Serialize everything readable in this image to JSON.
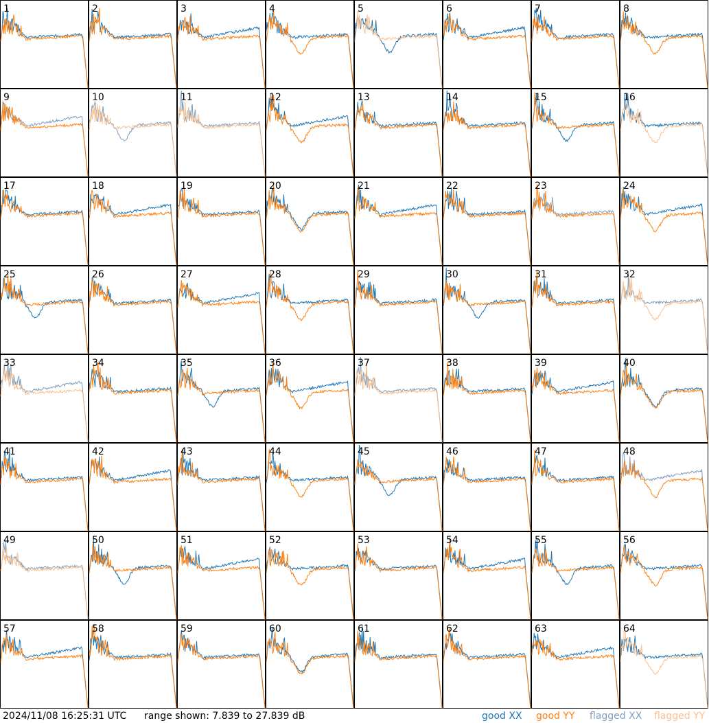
{
  "footer": {
    "timestamp": "2024/11/08 16:25:31 UTC",
    "range": "range shown: 7.839 to 27.839 dB"
  },
  "legend": {
    "good_xx": "good XX",
    "good_yy": "good YY",
    "flagged_xx": "flagged XX",
    "flagged_yy": "flagged YY"
  },
  "colors": {
    "good_xx": "#1f77b4",
    "good_yy": "#ff7f0e",
    "flagged_xx": "#7f9fbf",
    "flagged_yy": "#fbc08e",
    "border": "#000000"
  },
  "chart_data": {
    "type": "line",
    "ylim": [
      7.839,
      27.839
    ],
    "yunit": "dB",
    "panels": [
      {
        "id": "1",
        "xx": "good",
        "yy": "good"
      },
      {
        "id": "2",
        "xx": "good",
        "yy": "good"
      },
      {
        "id": "3",
        "xx": "good",
        "yy": "good"
      },
      {
        "id": "4",
        "xx": "good",
        "yy": "good"
      },
      {
        "id": "5",
        "xx": "good",
        "yy": "flagged"
      },
      {
        "id": "6",
        "xx": "good",
        "yy": "good"
      },
      {
        "id": "7",
        "xx": "good",
        "yy": "good"
      },
      {
        "id": "8",
        "xx": "good",
        "yy": "good"
      },
      {
        "id": "9",
        "xx": "flagged",
        "yy": "good"
      },
      {
        "id": "10",
        "xx": "flagged",
        "yy": "flagged"
      },
      {
        "id": "11",
        "xx": "flagged",
        "yy": "flagged"
      },
      {
        "id": "12",
        "xx": "good",
        "yy": "good"
      },
      {
        "id": "13",
        "xx": "good",
        "yy": "good"
      },
      {
        "id": "14",
        "xx": "good",
        "yy": "good"
      },
      {
        "id": "15",
        "xx": "good",
        "yy": "good"
      },
      {
        "id": "16",
        "xx": "good",
        "yy": "flagged"
      },
      {
        "id": "17",
        "xx": "good",
        "yy": "good"
      },
      {
        "id": "18",
        "xx": "good",
        "yy": "good"
      },
      {
        "id": "19",
        "xx": "good",
        "yy": "good"
      },
      {
        "id": "20",
        "xx": "good",
        "yy": "good"
      },
      {
        "id": "21",
        "xx": "good",
        "yy": "good"
      },
      {
        "id": "22",
        "xx": "good",
        "yy": "good"
      },
      {
        "id": "23",
        "xx": "flagged",
        "yy": "good"
      },
      {
        "id": "24",
        "xx": "good",
        "yy": "good"
      },
      {
        "id": "25",
        "xx": "good",
        "yy": "good"
      },
      {
        "id": "26",
        "xx": "good",
        "yy": "good"
      },
      {
        "id": "27",
        "xx": "good",
        "yy": "good"
      },
      {
        "id": "28",
        "xx": "good",
        "yy": "good"
      },
      {
        "id": "29",
        "xx": "good",
        "yy": "good"
      },
      {
        "id": "30",
        "xx": "good",
        "yy": "good"
      },
      {
        "id": "31",
        "xx": "good",
        "yy": "good"
      },
      {
        "id": "32",
        "xx": "flagged",
        "yy": "flagged"
      },
      {
        "id": "33",
        "xx": "flagged",
        "yy": "flagged"
      },
      {
        "id": "34",
        "xx": "good",
        "yy": "good"
      },
      {
        "id": "35",
        "xx": "good",
        "yy": "good"
      },
      {
        "id": "36",
        "xx": "good",
        "yy": "good"
      },
      {
        "id": "37",
        "xx": "flagged",
        "yy": "flagged"
      },
      {
        "id": "38",
        "xx": "good",
        "yy": "good"
      },
      {
        "id": "39",
        "xx": "good",
        "yy": "good"
      },
      {
        "id": "40",
        "xx": "good",
        "yy": "good"
      },
      {
        "id": "41",
        "xx": "good",
        "yy": "good"
      },
      {
        "id": "42",
        "xx": "good",
        "yy": "good"
      },
      {
        "id": "43",
        "xx": "good",
        "yy": "good"
      },
      {
        "id": "44",
        "xx": "good",
        "yy": "good"
      },
      {
        "id": "45",
        "xx": "good",
        "yy": "good"
      },
      {
        "id": "46",
        "xx": "good",
        "yy": "good"
      },
      {
        "id": "47",
        "xx": "good",
        "yy": "good"
      },
      {
        "id": "48",
        "xx": "flagged",
        "yy": "good"
      },
      {
        "id": "49",
        "xx": "flagged",
        "yy": "flagged"
      },
      {
        "id": "50",
        "xx": "good",
        "yy": "good"
      },
      {
        "id": "51",
        "xx": "good",
        "yy": "good"
      },
      {
        "id": "52",
        "xx": "good",
        "yy": "good"
      },
      {
        "id": "53",
        "xx": "good",
        "yy": "good"
      },
      {
        "id": "54",
        "xx": "good",
        "yy": "good"
      },
      {
        "id": "55",
        "xx": "good",
        "yy": "good"
      },
      {
        "id": "56",
        "xx": "good",
        "yy": "good"
      },
      {
        "id": "57",
        "xx": "good",
        "yy": "good"
      },
      {
        "id": "58",
        "xx": "good",
        "yy": "good"
      },
      {
        "id": "59",
        "xx": "good",
        "yy": "good"
      },
      {
        "id": "60",
        "xx": "good",
        "yy": "good"
      },
      {
        "id": "61",
        "xx": "good",
        "yy": "good"
      },
      {
        "id": "62",
        "xx": "good",
        "yy": "good"
      },
      {
        "id": "63",
        "xx": "good",
        "yy": "good"
      },
      {
        "id": "64",
        "xx": "good",
        "yy": "flagged"
      }
    ]
  }
}
